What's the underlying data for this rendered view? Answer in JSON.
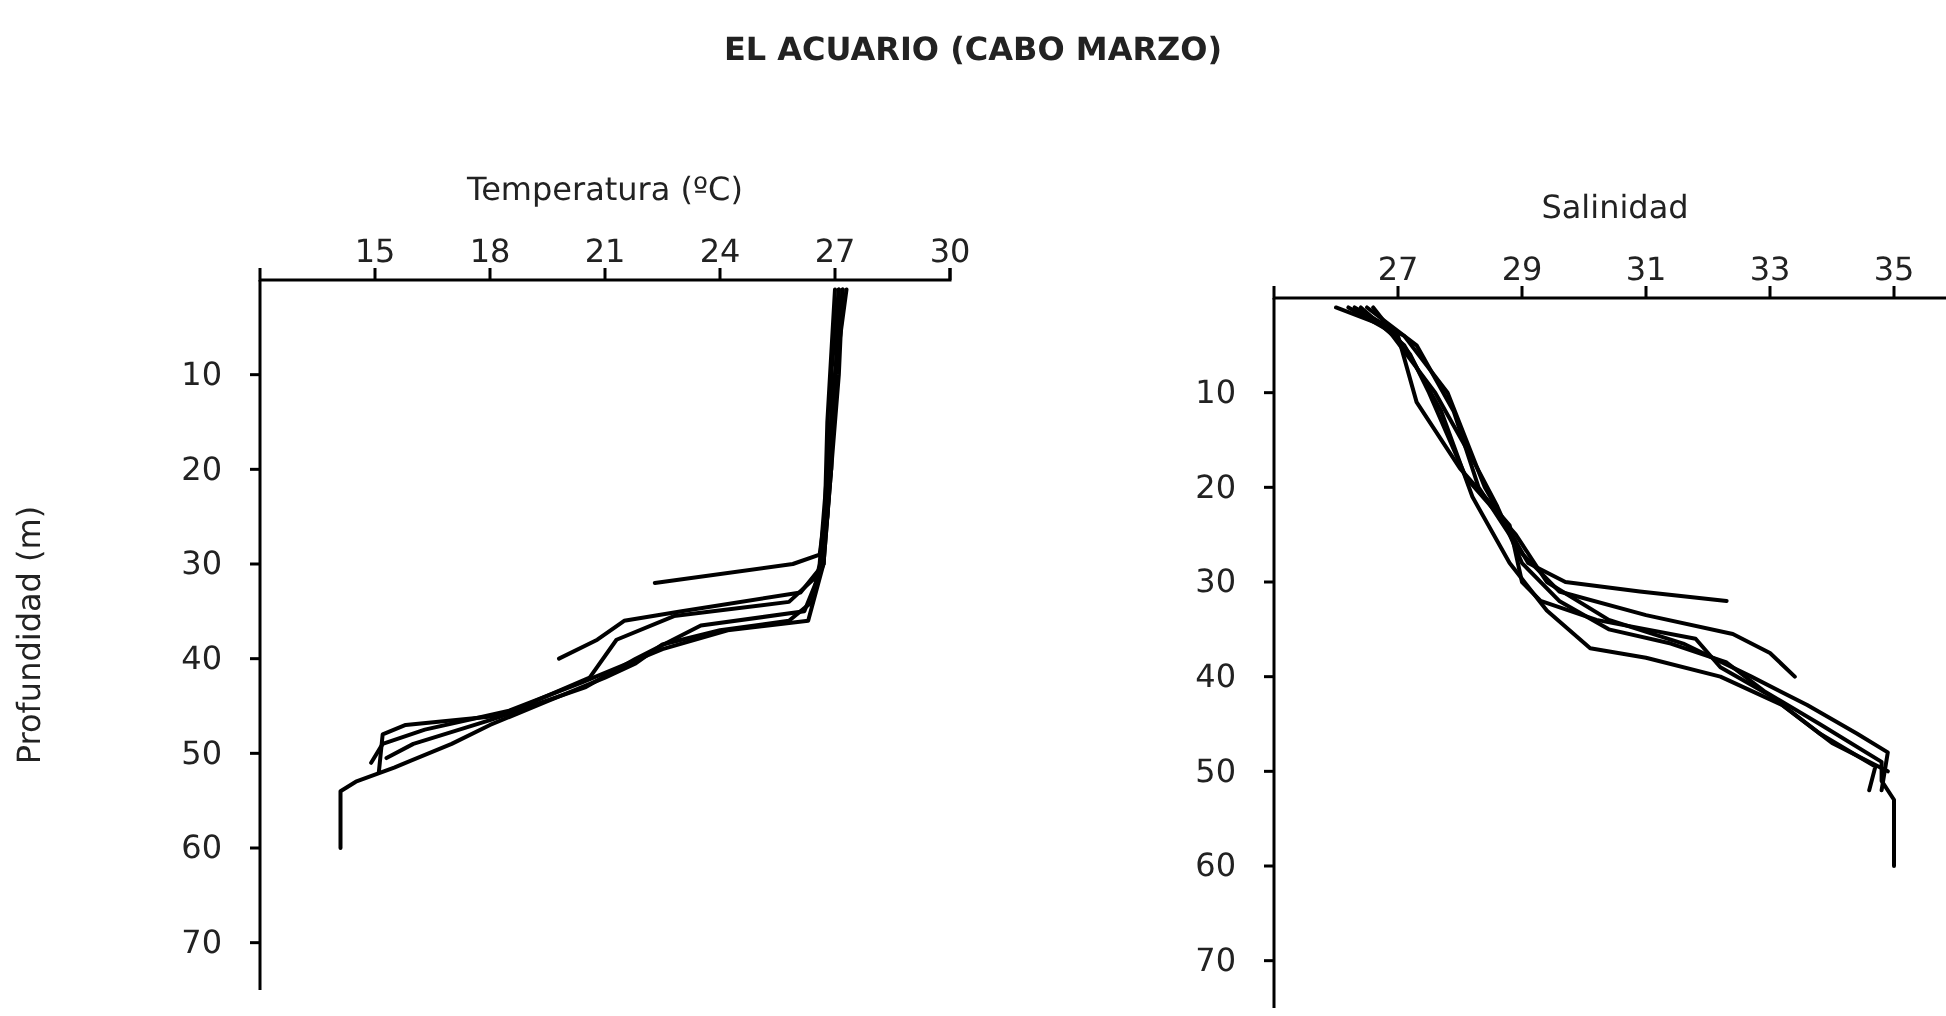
{
  "chart_data": [
    {
      "type": "line",
      "title": "EL ACUARIO (CABO MARZO)",
      "xlabel": "Temperatura (ºC)",
      "ylabel": "Profundidad (m)",
      "xlim": [
        12,
        30
      ],
      "xticks": [
        15,
        18,
        21,
        24,
        27,
        30
      ],
      "ylim": [
        75,
        0
      ],
      "yticks": [
        10,
        20,
        30,
        40,
        50,
        60,
        70
      ],
      "series": [
        {
          "color": "#000000",
          "x": [
            27.2,
            27.0,
            26.8,
            26.6,
            26.4,
            25.8,
            24,
            22.5,
            21.8,
            21,
            19.5,
            18,
            17,
            15.5,
            14.5,
            14.1,
            14.1
          ],
          "values": [
            1,
            10,
            20,
            30,
            34,
            36,
            37,
            38.5,
            40.5,
            42,
            44.5,
            47,
            49,
            51.5,
            53,
            54,
            60
          ]
        },
        {
          "color": "#000000",
          "x": [
            27.1,
            26.9,
            26.9,
            26.6,
            25.9,
            22.3
          ],
          "values": [
            1,
            10,
            20,
            29,
            30,
            32
          ]
        },
        {
          "color": "#000000",
          "x": [
            27.3,
            27,
            26.9,
            26.7,
            26.1,
            23,
            21.5,
            20.8,
            19.8
          ],
          "values": [
            1,
            10,
            20,
            30,
            33,
            35,
            36,
            38,
            40
          ]
        },
        {
          "color": "#000000",
          "x": [
            27.1,
            27.0,
            26.8,
            26.6,
            25.8,
            22.8,
            21.3,
            20.6,
            18.3,
            15.8,
            15.2,
            15.1
          ],
          "values": [
            1,
            12,
            25,
            31,
            34,
            35.5,
            38,
            42,
            46,
            47,
            48,
            52
          ]
        },
        {
          "color": "#000000",
          "x": [
            27.2,
            27.1,
            26.7,
            26.3,
            24.2,
            22.5,
            20.4,
            18.5,
            16.3,
            15.2,
            14.9
          ],
          "values": [
            1,
            10,
            30,
            36,
            37,
            39,
            42.5,
            45.5,
            47.5,
            49,
            51
          ]
        },
        {
          "color": "#000000",
          "x": [
            27.0,
            26.8,
            26.7,
            26.2,
            23.5,
            21.8,
            20.5,
            18,
            16,
            15.3
          ],
          "values": [
            1,
            15,
            30,
            35,
            36.5,
            40,
            43,
            46.5,
            49,
            50.5
          ]
        }
      ]
    },
    {
      "type": "line",
      "xlabel": "Salinidad",
      "xlim": [
        25,
        36
      ],
      "xticks": [
        27,
        29,
        31,
        33,
        35
      ],
      "ylim": [
        75,
        0
      ],
      "yticks": [
        10,
        20,
        30,
        40,
        50,
        60,
        70
      ],
      "series": [
        {
          "color": "#000000",
          "x": [
            26,
            26.8,
            27.6,
            28.2,
            28.6,
            29,
            29.6,
            30.4,
            31.4,
            32.3,
            32.9,
            33.8,
            34.8,
            34.8,
            35,
            35
          ],
          "values": [
            1,
            3,
            10,
            17,
            22,
            28,
            32,
            35,
            36.5,
            38.5,
            41.5,
            45,
            49,
            51,
            53,
            60
          ]
        },
        {
          "color": "#000000",
          "x": [
            26.3,
            27.1,
            27.8,
            28.4,
            29.1,
            29.7,
            30.9,
            32.3
          ],
          "values": [
            1,
            4,
            10,
            20,
            28,
            30,
            31,
            32
          ]
        },
        {
          "color": "#000000",
          "x": [
            26.5,
            27.3,
            27.9,
            28.3,
            29,
            29.6,
            31,
            32.4,
            33,
            33.4
          ],
          "values": [
            1,
            5,
            12,
            20,
            27,
            31,
            33.5,
            35.5,
            37.5,
            40
          ]
        },
        {
          "color": "#000000",
          "x": [
            26.6,
            27.2,
            27.5,
            28.1,
            28.9,
            29.4,
            30.4,
            31.6,
            32.7,
            33.6,
            34.4,
            34.9,
            34.8
          ],
          "values": [
            1,
            6,
            10,
            19,
            25,
            30,
            34,
            36.5,
            40,
            43,
            46,
            48,
            52
          ]
        },
        {
          "color": "#000000",
          "x": [
            26.2,
            27,
            27.3,
            28,
            28.8,
            29,
            29.3,
            30.2,
            31.8,
            32.2,
            33,
            33.8,
            34.7,
            34.6
          ],
          "values": [
            1,
            4,
            11,
            18,
            24,
            30,
            32,
            34,
            36,
            39,
            42,
            46,
            49.5,
            52
          ]
        },
        {
          "color": "#000000",
          "x": [
            26.4,
            27.1,
            27.7,
            28.2,
            28.8,
            29.4,
            30.1,
            31,
            32.2,
            33.2,
            34,
            34.9
          ],
          "values": [
            1,
            5,
            12,
            21,
            28,
            33,
            37,
            38,
            40,
            43,
            47,
            50
          ]
        }
      ]
    }
  ]
}
